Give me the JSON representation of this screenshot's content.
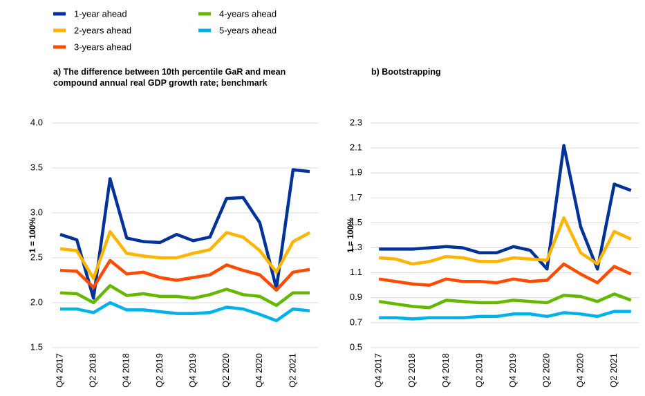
{
  "chart_data": [
    {
      "type": "line",
      "title": "a) The difference between 10th percentile GaR and mean compound annual real GDP growth rate; benchmark",
      "y_label": "1 = 100%",
      "categories": [
        "Q4 2017",
        null,
        "Q2 2018",
        null,
        "Q4 2018",
        null,
        "Q2 2019",
        null,
        "Q4 2019",
        null,
        "Q2 2020",
        null,
        "Q4 2020",
        null,
        "Q2 2021",
        null
      ],
      "ylim": [
        1.5,
        4.0
      ],
      "yticks": [
        {
          "value": 1.5,
          "label": "1.5"
        },
        {
          "value": 2.0,
          "label": "2.0"
        },
        {
          "value": 2.5,
          "label": "2.5"
        },
        {
          "value": 3.0,
          "label": "3.0"
        },
        {
          "value": 3.5,
          "label": "3.5"
        },
        {
          "value": 4.0,
          "label": "4.0"
        }
      ],
      "grid": true,
      "series": [
        {
          "name": "1-year ahead",
          "color": "#003299",
          "values": [
            2.76,
            2.7,
            2.05,
            3.38,
            2.72,
            2.68,
            2.67,
            2.76,
            2.69,
            2.73,
            3.16,
            3.17,
            2.89,
            2.16,
            3.48,
            3.46
          ]
        },
        {
          "name": "2-years ahead",
          "color": "#ffb400",
          "values": [
            2.6,
            2.58,
            2.27,
            2.79,
            2.55,
            2.52,
            2.5,
            2.5,
            2.55,
            2.59,
            2.78,
            2.73,
            2.58,
            2.34,
            2.68,
            2.78
          ]
        },
        {
          "name": "3-years ahead",
          "color": "#ff4b00",
          "values": [
            2.36,
            2.35,
            2.17,
            2.47,
            2.32,
            2.34,
            2.28,
            2.25,
            2.28,
            2.31,
            2.42,
            2.36,
            2.31,
            2.14,
            2.34,
            2.37
          ]
        },
        {
          "name": "4-years ahead",
          "color": "#65b800",
          "values": [
            2.11,
            2.1,
            2.0,
            2.19,
            2.08,
            2.1,
            2.07,
            2.07,
            2.05,
            2.09,
            2.15,
            2.09,
            2.07,
            1.97,
            2.11,
            2.11
          ]
        },
        {
          "name": "5-years ahead",
          "color": "#00b1ea",
          "values": [
            1.93,
            1.93,
            1.89,
            2.0,
            1.92,
            1.92,
            1.9,
            1.88,
            1.88,
            1.89,
            1.95,
            1.93,
            1.87,
            1.8,
            1.93,
            1.91
          ]
        }
      ]
    },
    {
      "type": "line",
      "title": "b) Bootstrapping",
      "y_label": "1 = 100%",
      "categories": [
        "Q4 2017",
        null,
        "Q2 2018",
        null,
        "Q4 2018",
        null,
        "Q2 2019",
        null,
        "Q4 2019",
        null,
        "Q2 2020",
        null,
        "Q4 2020",
        null,
        "Q2 2021",
        null
      ],
      "ylim": [
        0.5,
        2.3
      ],
      "yticks": [
        0.5,
        0.7,
        0.9,
        1.1,
        1.3,
        1.5,
        1.7,
        1.9,
        2.1,
        2.3
      ],
      "grid": true,
      "series": [
        {
          "color": "#003299",
          "values": [
            1.29,
            1.29,
            1.29,
            1.3,
            1.31,
            1.3,
            1.26,
            1.26,
            1.31,
            1.28,
            1.13,
            2.12,
            1.47,
            1.13,
            1.81,
            1.76
          ]
        },
        {
          "color": "#ffb400",
          "values": [
            1.22,
            1.21,
            1.17,
            1.19,
            1.23,
            1.22,
            1.19,
            1.19,
            1.22,
            1.21,
            1.2,
            1.54,
            1.26,
            1.17,
            1.43,
            1.37
          ]
        },
        {
          "color": "#ff4b00",
          "values": [
            1.05,
            1.03,
            1.01,
            1.0,
            1.05,
            1.03,
            1.03,
            1.02,
            1.05,
            1.03,
            1.04,
            1.17,
            1.09,
            1.02,
            1.15,
            1.09
          ]
        },
        {
          "color": "#65b800",
          "values": [
            0.87,
            0.85,
            0.83,
            0.82,
            0.88,
            0.87,
            0.86,
            0.86,
            0.88,
            0.87,
            0.86,
            0.92,
            0.91,
            0.87,
            0.93,
            0.88
          ]
        },
        {
          "color": "#00b1ea",
          "values": [
            0.74,
            0.74,
            0.73,
            0.74,
            0.74,
            0.74,
            0.75,
            0.75,
            0.77,
            0.77,
            0.75,
            0.78,
            0.77,
            0.75,
            0.79,
            0.79
          ]
        }
      ]
    }
  ]
}
